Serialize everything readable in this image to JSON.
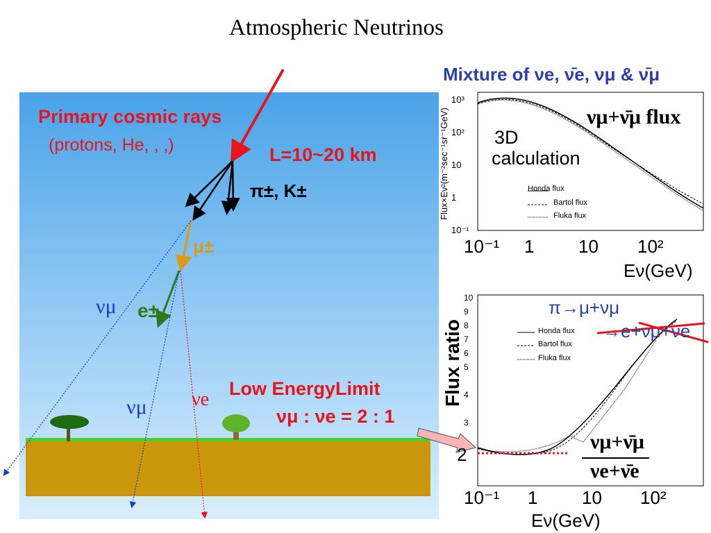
{
  "title": "Atmospheric Neutrinos",
  "left_panel": {
    "primary": "Primary cosmic rays",
    "primary_note": "(protons, He, , ,)",
    "distance": "L=10~20 km",
    "mesons": "π±, K±",
    "muon": "μ±",
    "numu_left": "νμ",
    "electron": "e±",
    "numu_mid": "νμ",
    "nue": "νe",
    "limit_title": "Low EnergyLimit",
    "limit_ratio": "νμ : νe = 2 : 1"
  },
  "flux_chart": {
    "heading": "Mixture of νe, ν̄e, νμ & ν̄μ",
    "ylabel": "Flux×Eν²(m⁻²sec⁻¹sr⁻¹GeV)",
    "yticks": [
      "10³",
      "10²",
      "10",
      "1",
      "10⁻¹"
    ],
    "legend": [
      "Honda flux",
      "Bartol flux",
      "Fluka flux"
    ],
    "series_label": "νμ+ν̄μ flux",
    "note": [
      "3D",
      "calculation"
    ],
    "xticks": [
      "10⁻¹",
      "1",
      "10",
      "10²"
    ],
    "xlabel": "Eν(GeV)"
  },
  "ratio_chart": {
    "decay1": "π→μ+νμ",
    "decay2": "→e+νμ+νe",
    "ylabel": "Flux ratio",
    "yticks": [
      "10",
      "9",
      "8",
      "7",
      "6",
      "5",
      "4",
      "3",
      "2"
    ],
    "legend": [
      "Honda flux",
      "Bartol flux",
      "Fluka flux"
    ],
    "numerator": "νμ+ν̄μ",
    "denominator": "νe+ν̄e",
    "xticks": [
      "10⁻¹",
      "1",
      "10",
      "10²"
    ],
    "xlabel": "Eν(GeV)"
  }
}
